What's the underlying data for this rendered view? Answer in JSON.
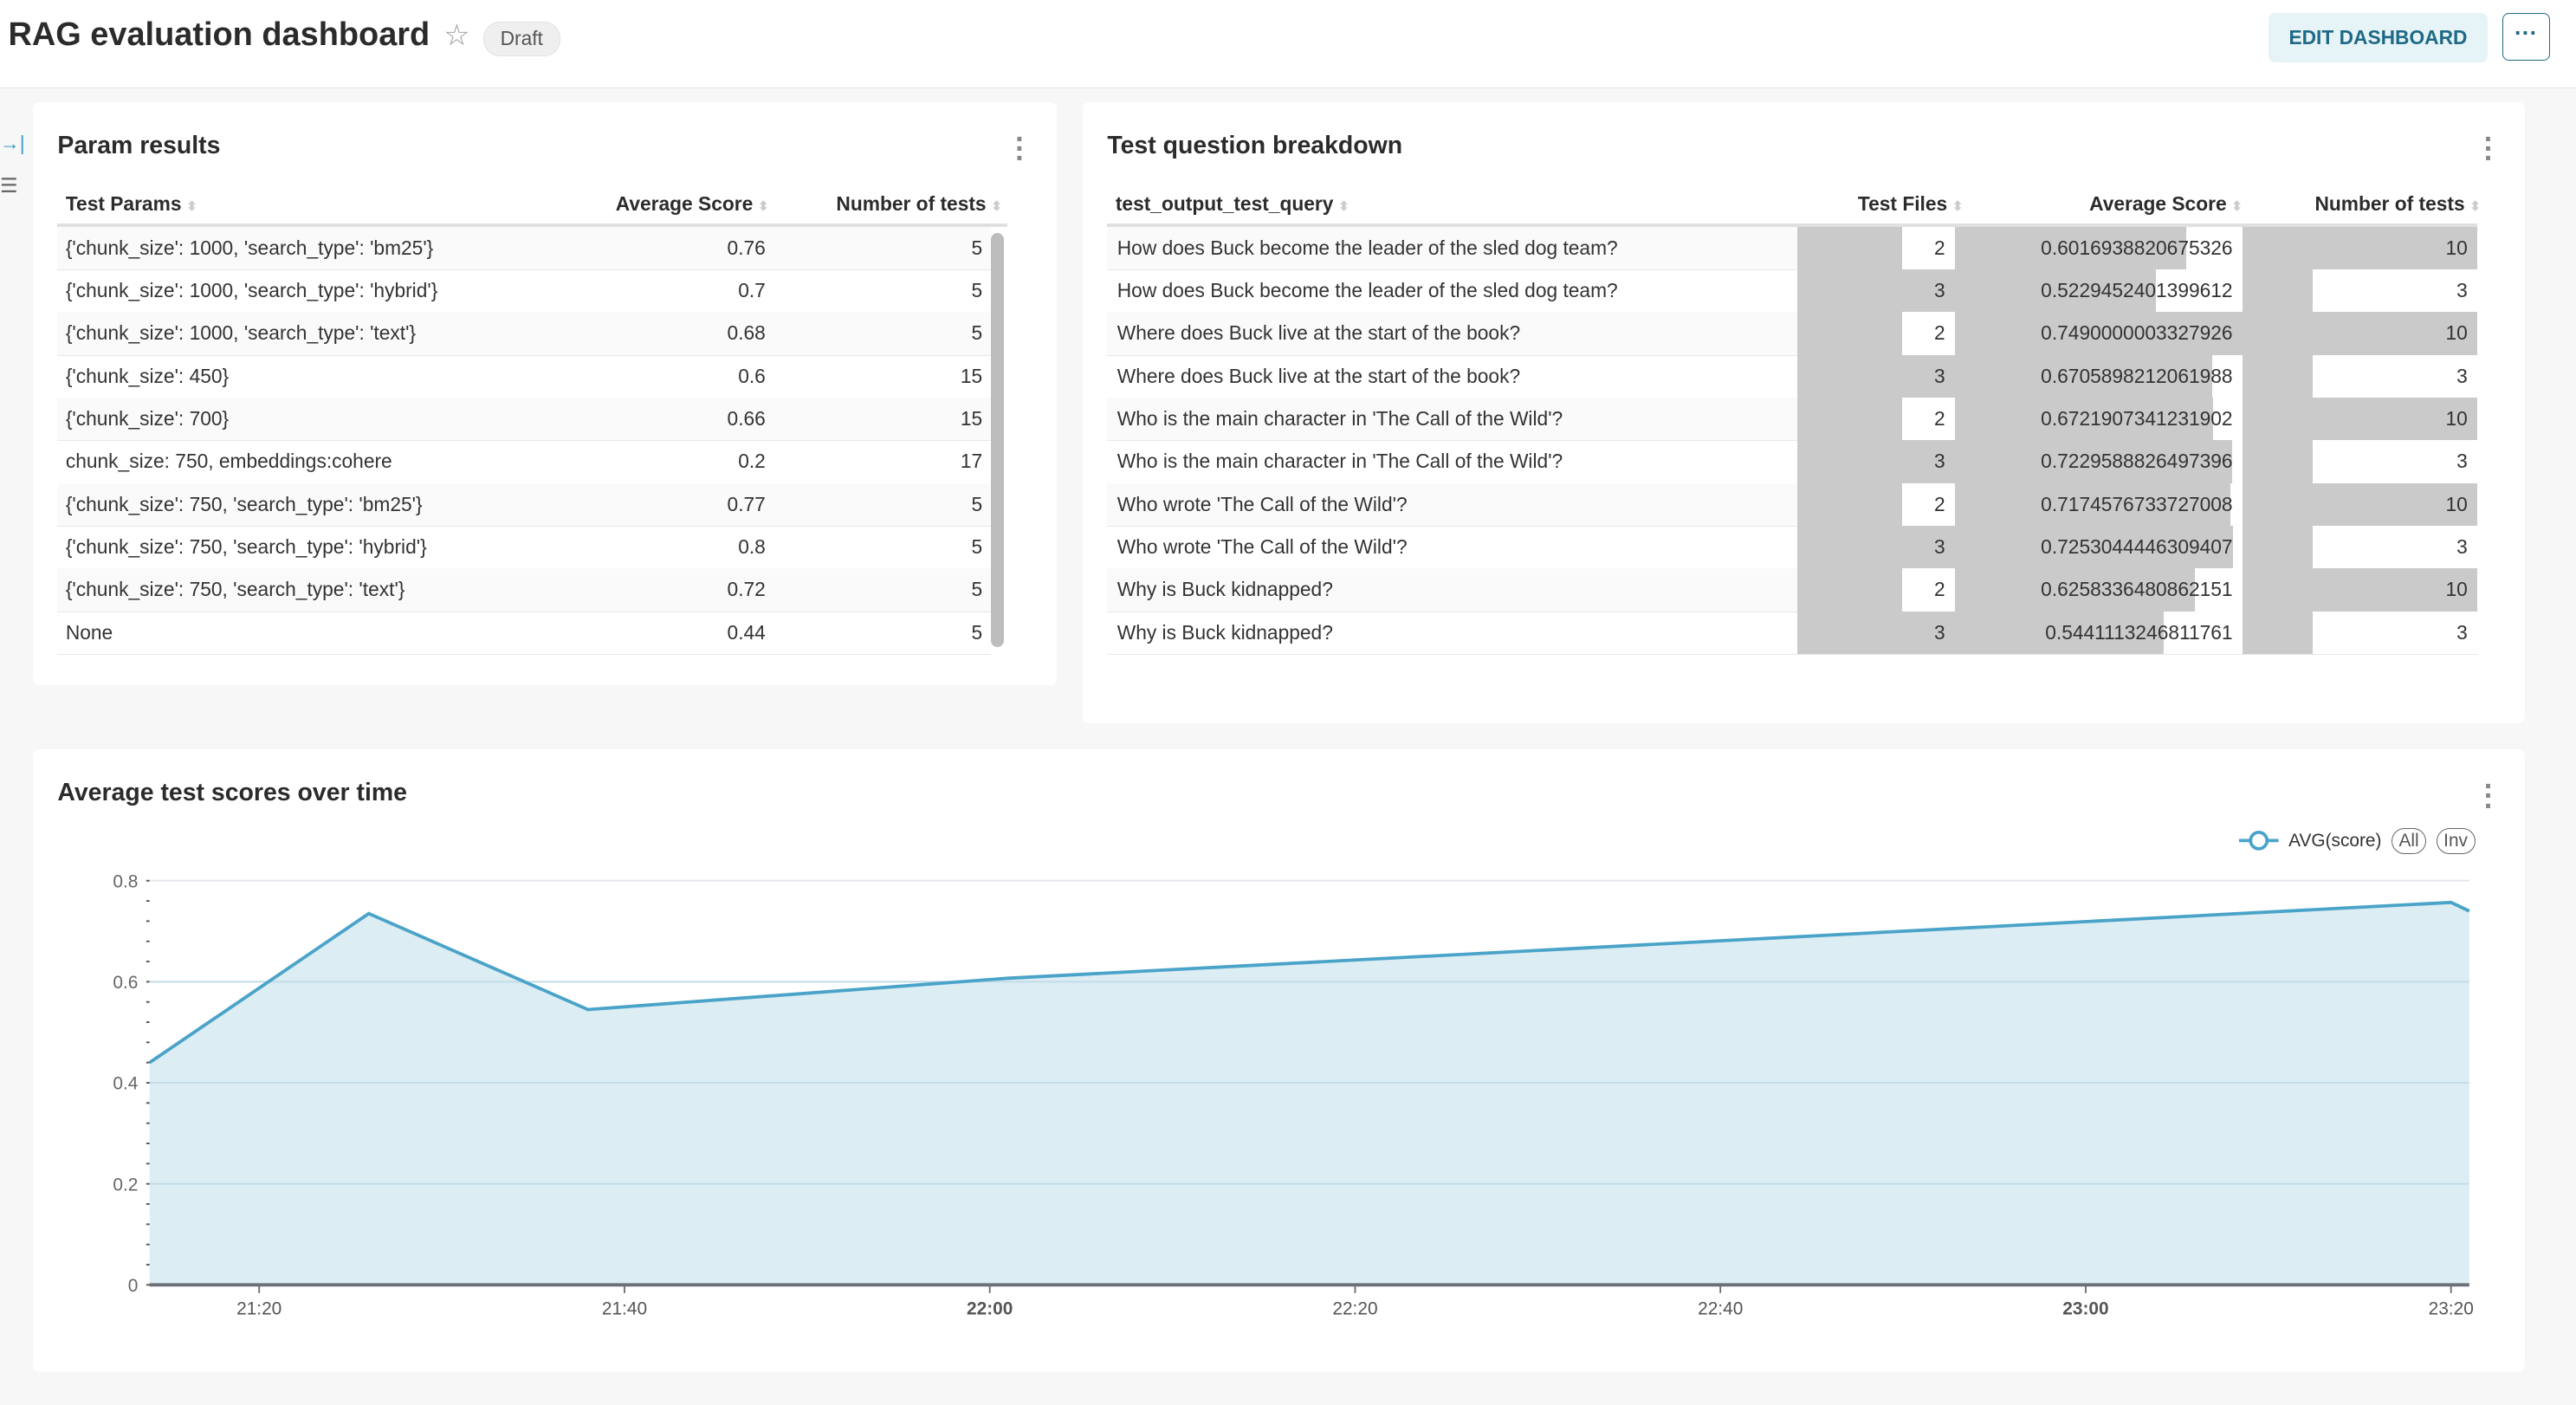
{
  "header": {
    "title": "RAG evaluation dashboard",
    "status_badge": "Draft",
    "edit_button": "EDIT DASHBOARD",
    "more_button": "···"
  },
  "param_results": {
    "title": "Param results",
    "columns": [
      "Test Params",
      "Average Score",
      "Number of tests"
    ],
    "rows": [
      [
        "{'chunk_size': 1000, 'search_type': 'bm25'}",
        "0.76",
        "5"
      ],
      [
        "{'chunk_size': 1000, 'search_type': 'hybrid'}",
        "0.7",
        "5"
      ],
      [
        "{'chunk_size': 1000, 'search_type': 'text'}",
        "0.68",
        "5"
      ],
      [
        "{'chunk_size': 450}",
        "0.6",
        "15"
      ],
      [
        "{'chunk_size': 700}",
        "0.66",
        "15"
      ],
      [
        "chunk_size: 750, embeddings:cohere",
        "0.2",
        "17"
      ],
      [
        "{'chunk_size': 750, 'search_type': 'bm25'}",
        "0.77",
        "5"
      ],
      [
        "{'chunk_size': 750, 'search_type': 'hybrid'}",
        "0.8",
        "5"
      ],
      [
        "{'chunk_size': 750, 'search_type': 'text'}",
        "0.72",
        "5"
      ],
      [
        "None",
        "0.44",
        "5"
      ]
    ]
  },
  "breakdown": {
    "title": "Test question breakdown",
    "columns": [
      "test_output_test_query",
      "Test Files",
      "Average Score",
      "Number of tests"
    ],
    "rows": [
      [
        "How does Buck become the leader of the sled dog team?",
        "2",
        "0.6016938820675326",
        "10"
      ],
      [
        "How does Buck become the leader of the sled dog team?",
        "3",
        "0.5229452401399612",
        "3"
      ],
      [
        "Where does Buck live at the start of the book?",
        "2",
        "0.7490000003327926",
        "10"
      ],
      [
        "Where does Buck live at the start of the book?",
        "3",
        "0.6705898212061988",
        "3"
      ],
      [
        "Who is the main character in 'The Call of the Wild'?",
        "2",
        "0.6721907341231902",
        "10"
      ],
      [
        "Who is the main character in 'The Call of the Wild'?",
        "3",
        "0.7229588826497396",
        "3"
      ],
      [
        "Who wrote 'The Call of the Wild'?",
        "2",
        "0.7174576733727008",
        "10"
      ],
      [
        "Who wrote 'The Call of the Wild'?",
        "3",
        "0.7253044446309407",
        "3"
      ],
      [
        "Why is Buck kidnapped?",
        "2",
        "0.6258336480862151",
        "10"
      ],
      [
        "Why is Buck kidnapped?",
        "3",
        "0.5441113246811761",
        "3"
      ]
    ],
    "bar_color": "#cacaca"
  },
  "chart": {
    "title": "Average test scores over time",
    "legend_all": "All",
    "legend_inv": "Inv"
  },
  "chart_data": {
    "type": "area",
    "series": [
      {
        "name": "AVG(score)",
        "color": "#4aa3c8",
        "x": [
          "21:14",
          "21:26",
          "21:38",
          "22:01",
          "23:20",
          "23:21"
        ],
        "values": [
          0.44,
          0.735,
          0.545,
          0.607,
          0.757,
          0.74
        ]
      }
    ],
    "x_ticks": [
      "21:20",
      "21:40",
      "22:00",
      "22:20",
      "22:40",
      "23:00",
      "23:20"
    ],
    "x_ticks_bold": [
      "22:00",
      "23:00"
    ],
    "y_ticks": [
      "0",
      "0.2",
      "0.4",
      "0.6",
      "0.8"
    ],
    "ylim": [
      0,
      0.8
    ],
    "xlim": [
      "21:14",
      "23:21"
    ],
    "grid": true,
    "legend": "top-right"
  }
}
